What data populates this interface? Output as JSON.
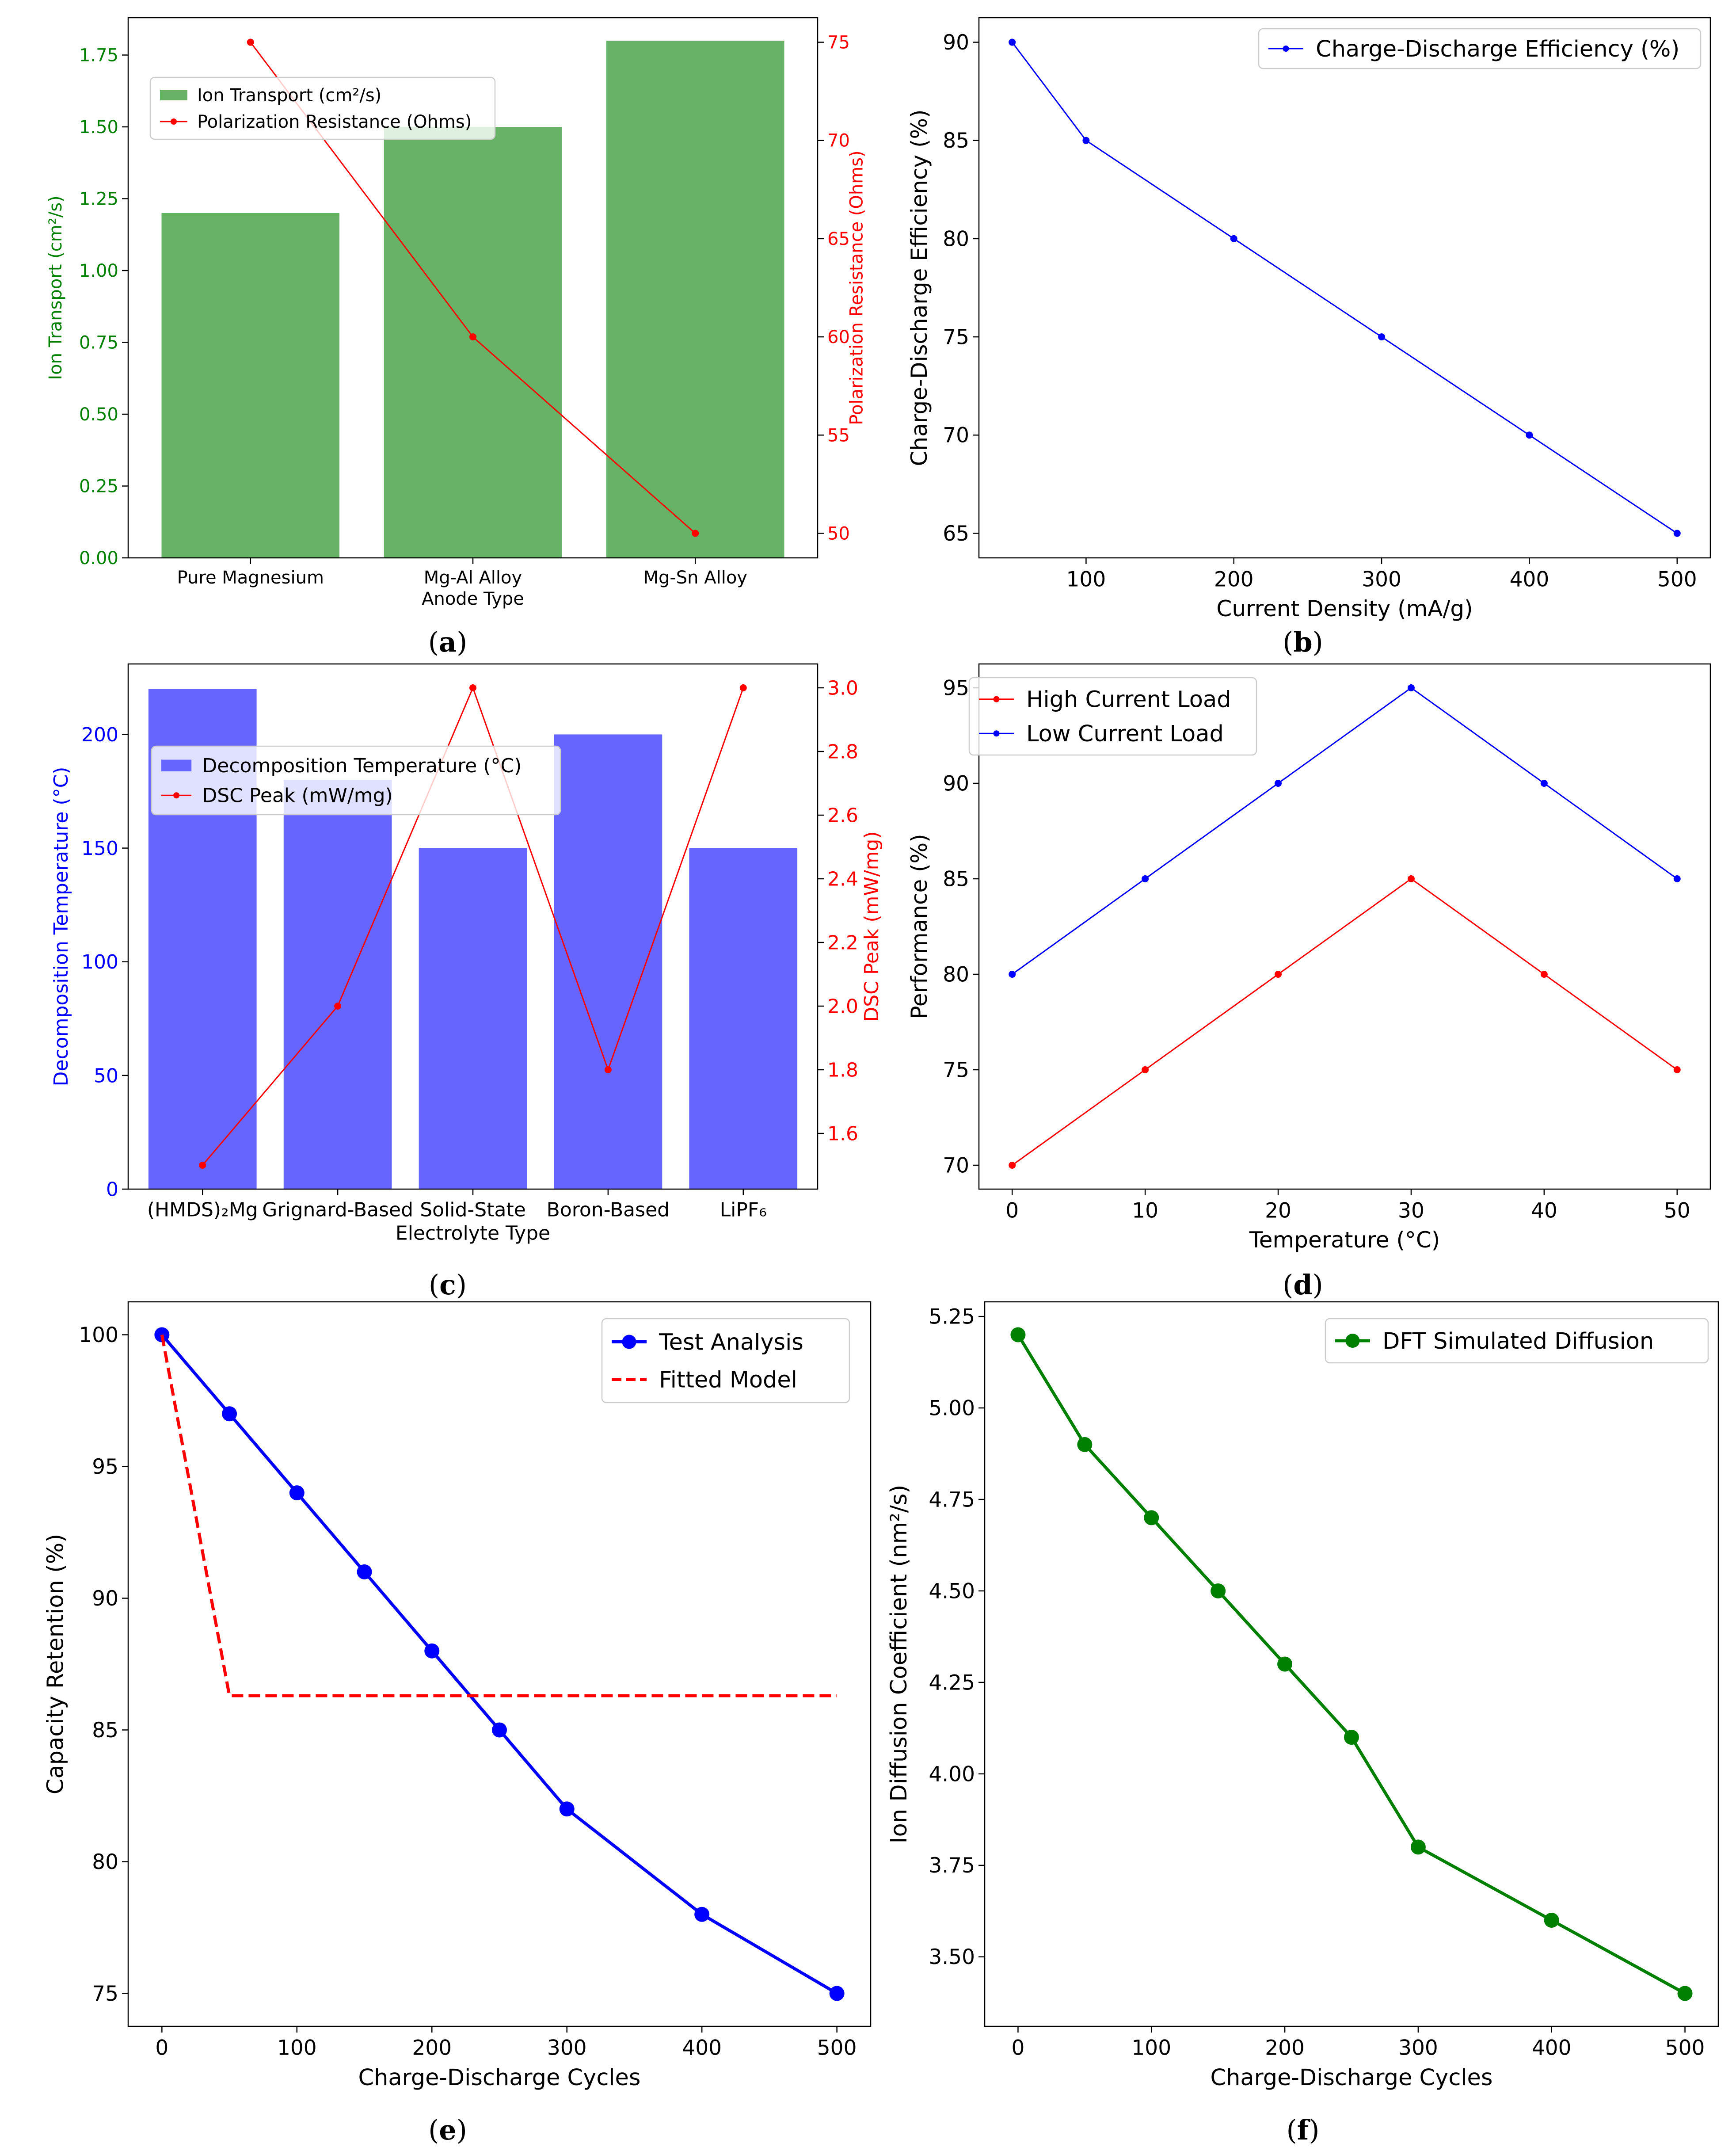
{
  "figure": {
    "captions": [
      {
        "open": "(",
        "letter": "a",
        "close": ")"
      },
      {
        "open": "(",
        "letter": "b",
        "close": ")"
      },
      {
        "open": "(",
        "letter": "c",
        "close": ")"
      },
      {
        "open": "(",
        "letter": "d",
        "close": ")"
      },
      {
        "open": "(",
        "letter": "e",
        "close": ")"
      },
      {
        "open": "(",
        "letter": "f",
        "close": ")"
      }
    ]
  },
  "colors": {
    "bar_green": "#67b267",
    "bar_blue": "#6666ff",
    "red": "#ff0000",
    "blue": "#0000ff",
    "green": "#008000",
    "axis_green": "#008000",
    "axis_red": "#ff0000",
    "axis_blue": "#0000ff"
  },
  "chart_data": [
    {
      "id": "a",
      "type": "bar",
      "xlabel": "Anode Type",
      "categories": [
        "Pure Magnesium",
        "Mg-Al Alloy",
        "Mg-Sn Alloy"
      ],
      "ylabel": "Ion Transport (cm²/s)",
      "ylim": [
        0,
        1.88
      ],
      "yticks": [
        "0.00",
        "0.25",
        "0.50",
        "0.75",
        "1.00",
        "1.25",
        "1.50",
        "1.75"
      ],
      "y2label": "Polarization Resistance (Ohms)",
      "y2lim": [
        48.75,
        76.25
      ],
      "y2ticks": [
        "50",
        "55",
        "60",
        "65",
        "70",
        "75"
      ],
      "legend_position": "upper-center",
      "series": [
        {
          "name": "Ion Transport (cm²/s)",
          "kind": "bar",
          "axis": "left",
          "values": [
            1.2,
            1.5,
            1.8
          ]
        },
        {
          "name": "Polarization Resistance (Ohms)",
          "kind": "line",
          "axis": "right",
          "values": [
            75,
            60,
            50
          ]
        }
      ]
    },
    {
      "id": "b",
      "type": "line",
      "xlabel": "Current Density (mA/g)",
      "ylabel": "Charge-Discharge Efficiency (%)",
      "xlim": [
        27.5,
        522.5
      ],
      "xticks": [
        "100",
        "200",
        "300",
        "400",
        "500"
      ],
      "ylim": [
        63.75,
        91.25
      ],
      "yticks": [
        "65",
        "70",
        "75",
        "80",
        "85",
        "90"
      ],
      "legend_position": "upper-right",
      "series": [
        {
          "name": "Charge-Discharge Efficiency (%)",
          "x": [
            50,
            100,
            200,
            300,
            400,
            500
          ],
          "y": [
            90,
            85,
            80,
            75,
            70,
            65
          ]
        }
      ]
    },
    {
      "id": "c",
      "type": "bar",
      "xlabel": "Electrolyte Type",
      "categories": [
        "(HMDS)₂Mg",
        "Grignard-Based",
        "Solid-State",
        "Boron-Based",
        "LiPF₆"
      ],
      "ylabel": "Decomposition Temperature (°C)",
      "ylim": [
        0,
        231
      ],
      "yticks": [
        "0",
        "50",
        "100",
        "150",
        "200"
      ],
      "y2label": "DSC Peak (mW/mg)",
      "y2lim": [
        1.425,
        3.075
      ],
      "y2ticks": [
        "1.6",
        "1.8",
        "2.0",
        "2.2",
        "2.4",
        "2.6",
        "2.8",
        "3.0"
      ],
      "legend_position": "upper-center",
      "series": [
        {
          "name": "Decomposition Temperature (°C)",
          "kind": "bar",
          "axis": "left",
          "values": [
            220,
            180,
            150,
            200,
            150
          ]
        },
        {
          "name": "DSC Peak (mW/mg)",
          "kind": "line",
          "axis": "right",
          "values": [
            1.5,
            2.0,
            3.0,
            1.8,
            3.0
          ]
        }
      ]
    },
    {
      "id": "d",
      "type": "line",
      "xlabel": "Temperature (°C)",
      "ylabel": "Performance (%)",
      "xlim": [
        -2.5,
        52.5
      ],
      "xticks": [
        "0",
        "10",
        "20",
        "30",
        "40",
        "50"
      ],
      "ylim": [
        68.75,
        96.25
      ],
      "yticks": [
        "70",
        "75",
        "80",
        "85",
        "90",
        "95"
      ],
      "legend_position": "upper-left",
      "series": [
        {
          "name": "High Current Load",
          "x": [
            0,
            10,
            20,
            30,
            40,
            50
          ],
          "y": [
            70,
            75,
            80,
            85,
            80,
            75
          ]
        },
        {
          "name": "Low Current Load",
          "x": [
            0,
            10,
            20,
            30,
            40,
            50
          ],
          "y": [
            80,
            85,
            90,
            95,
            90,
            85
          ]
        }
      ]
    },
    {
      "id": "e",
      "type": "line",
      "xlabel": "Charge-Discharge Cycles",
      "ylabel": "Capacity Retention (%)",
      "xlim": [
        -25,
        525
      ],
      "xticks": [
        "0",
        "100",
        "200",
        "300",
        "400",
        "500"
      ],
      "ylim": [
        73.75,
        101.25
      ],
      "yticks": [
        "75",
        "80",
        "85",
        "90",
        "95",
        "100"
      ],
      "legend_position": "upper-right",
      "series": [
        {
          "name": "Test Analysis",
          "style": "solid-markers",
          "x": [
            0,
            50,
            100,
            150,
            200,
            250,
            300,
            400,
            500
          ],
          "y": [
            100,
            97,
            94,
            91,
            88,
            85,
            82,
            78,
            75
          ]
        },
        {
          "name": "Fitted Model",
          "style": "dashed",
          "x": [
            0,
            50,
            100,
            150,
            200,
            250,
            300,
            400,
            500
          ],
          "y": [
            100,
            86.3,
            86.3,
            86.3,
            86.3,
            86.3,
            86.3,
            86.3,
            86.3
          ]
        }
      ]
    },
    {
      "id": "f",
      "type": "line",
      "xlabel": "Charge-Discharge Cycles",
      "ylabel": "Ion Diffusion Coefficient (nm²/s)",
      "xlim": [
        -25,
        525
      ],
      "xticks": [
        "0",
        "100",
        "200",
        "300",
        "400",
        "500"
      ],
      "ylim": [
        3.31,
        5.29
      ],
      "yticks": [
        "3.50",
        "3.75",
        "4.00",
        "4.25",
        "4.50",
        "4.75",
        "5.00",
        "5.25"
      ],
      "legend_position": "upper-right",
      "series": [
        {
          "name": "DFT Simulated Diffusion",
          "x": [
            0,
            50,
            100,
            150,
            200,
            250,
            300,
            400,
            500
          ],
          "y": [
            5.2,
            4.9,
            4.7,
            4.5,
            4.3,
            4.1,
            3.8,
            3.6,
            3.4
          ]
        }
      ]
    }
  ]
}
